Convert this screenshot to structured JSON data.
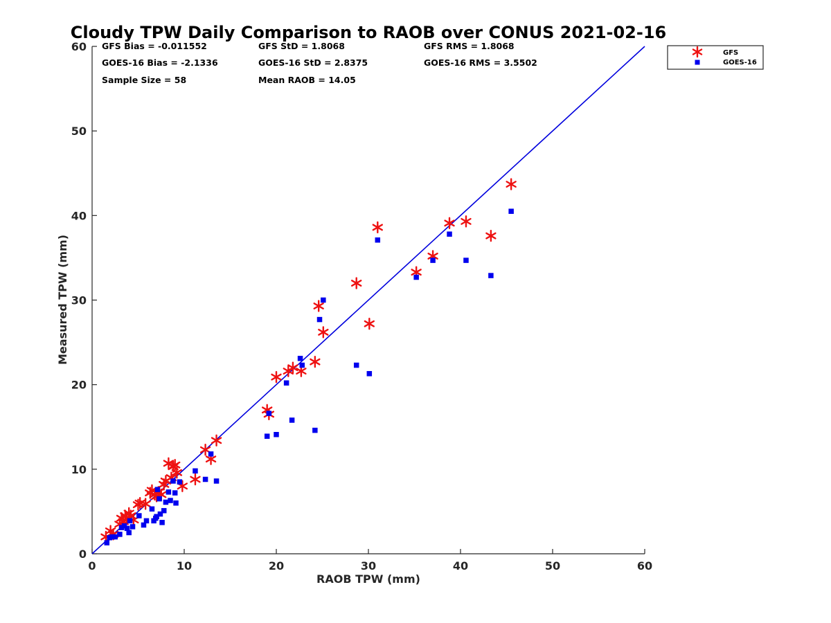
{
  "chart_data": {
    "type": "scatter",
    "title": "Cloudy TPW Daily Comparison to RAOB over CONUS 2021-02-16",
    "xlabel": "RAOB TPW (mm)",
    "ylabel": "Measured TPW (mm)",
    "xlim": [
      0,
      60
    ],
    "ylim": [
      0,
      60
    ],
    "xticks": [
      "0",
      "10",
      "20",
      "30",
      "40",
      "50",
      "60"
    ],
    "yticks": [
      "0",
      "10",
      "20",
      "30",
      "40",
      "50",
      "60"
    ],
    "grid": false,
    "legend_position": "top-right",
    "reference_line": {
      "x": [
        0,
        60
      ],
      "y": [
        0,
        60
      ],
      "color": "#0000dd"
    },
    "stats": [
      [
        "GFS Bias = -0.011552",
        "GFS StD = 1.8068",
        "GFS RMS = 1.8068"
      ],
      [
        "GOES-16 Bias = -2.1336",
        "GOES-16 StD = 2.8375",
        "GOES-16 RMS = 3.5502"
      ],
      [
        "Sample Size = 58",
        "Mean RAOB = 14.05",
        ""
      ]
    ],
    "series": [
      {
        "name": "GFS",
        "marker": "asterisk",
        "color": "#ee1111",
        "x": [
          1.5,
          2.0,
          2.3,
          3.0,
          3.2,
          3.4,
          3.6,
          3.8,
          4.0,
          4.2,
          4.5,
          5.0,
          5.2,
          5.8,
          6.3,
          6.5,
          6.8,
          7.0,
          7.2,
          7.5,
          7.8,
          8.0,
          8.3,
          8.6,
          8.8,
          9.0,
          9.2,
          9.8,
          11.2,
          12.3,
          12.9,
          13.5,
          19.0,
          19.2,
          20.0,
          21.3,
          21.8,
          22.7,
          24.2,
          24.6,
          25.1,
          28.7,
          30.1,
          31.0,
          35.2,
          37.0,
          38.8,
          40.6,
          43.3,
          45.5
        ],
        "y": [
          2.0,
          2.7,
          2.3,
          3.5,
          4.2,
          3.8,
          4.5,
          4.2,
          4.8,
          4.5,
          4.0,
          5.8,
          6.0,
          5.9,
          7.2,
          7.5,
          7.0,
          6.8,
          7.3,
          7.0,
          8.2,
          8.6,
          10.7,
          9.0,
          10.3,
          10.5,
          9.6,
          8.0,
          8.8,
          12.3,
          11.2,
          13.4,
          17.0,
          16.5,
          20.9,
          21.6,
          22.0,
          21.6,
          22.7,
          29.3,
          26.2,
          32.0,
          27.2,
          38.6,
          33.3,
          35.2,
          39.1,
          39.3,
          37.6,
          43.7
        ]
      },
      {
        "name": "GOES-16",
        "marker": "square",
        "color": "#0000ee",
        "x": [
          1.6,
          1.9,
          2.2,
          2.5,
          3.0,
          3.2,
          3.5,
          3.8,
          4.0,
          4.1,
          4.4,
          5.1,
          5.6,
          5.9,
          6.5,
          6.7,
          6.9,
          7.0,
          7.1,
          7.3,
          7.4,
          7.6,
          7.8,
          8.0,
          8.3,
          8.5,
          8.8,
          9.0,
          9.1,
          9.5,
          11.2,
          12.3,
          12.9,
          13.5,
          19.0,
          19.2,
          20.0,
          21.1,
          21.7,
          22.6,
          22.8,
          24.2,
          24.7,
          25.1,
          28.7,
          30.1,
          31.0,
          35.2,
          37.0,
          38.8,
          40.6,
          43.3,
          45.5
        ],
        "y": [
          1.3,
          1.9,
          2.0,
          2.0,
          2.3,
          3.1,
          3.3,
          3.0,
          2.5,
          3.9,
          3.2,
          4.5,
          3.4,
          3.9,
          5.3,
          3.9,
          4.2,
          4.4,
          7.6,
          6.5,
          4.7,
          3.7,
          5.1,
          6.1,
          7.3,
          6.3,
          8.6,
          7.2,
          6.0,
          8.5,
          9.8,
          8.8,
          11.8,
          8.6,
          13.9,
          16.6,
          14.1,
          20.2,
          15.8,
          23.1,
          22.3,
          14.6,
          27.7,
          30.0,
          22.3,
          21.3,
          37.1,
          32.7,
          34.7,
          37.8,
          34.7,
          32.9,
          40.5
        ]
      }
    ]
  }
}
